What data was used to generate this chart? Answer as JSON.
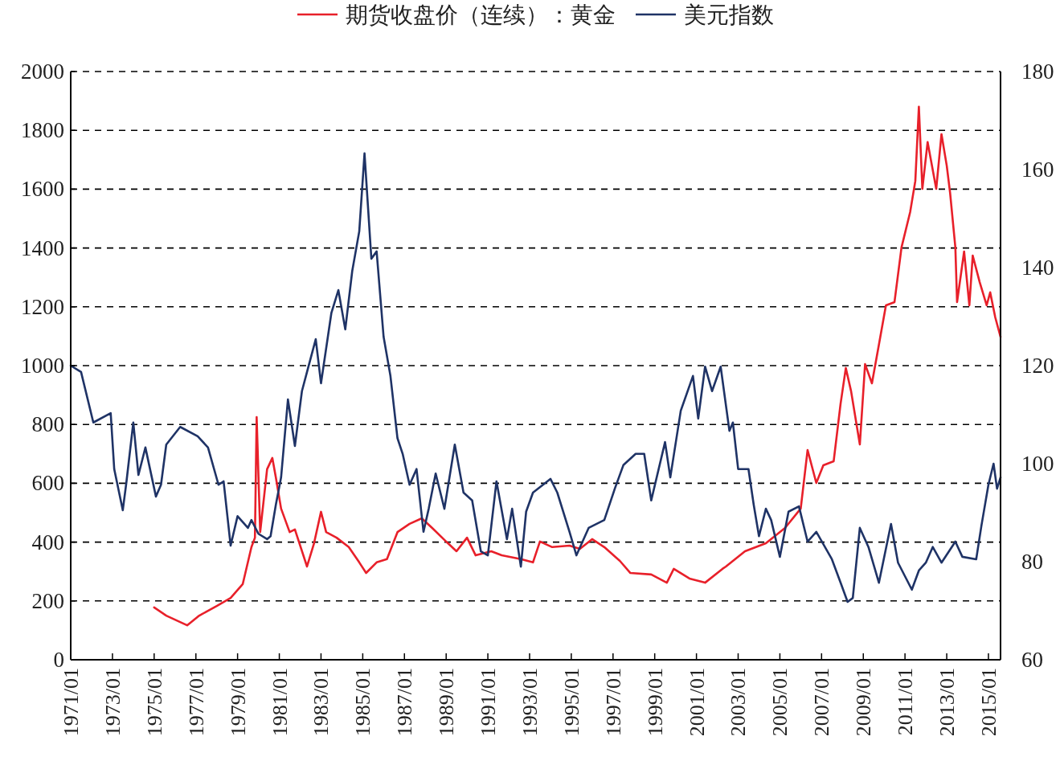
{
  "chart_data": {
    "type": "line",
    "legend": "top",
    "grid": "y",
    "xlim": [
      "1971-01",
      "2015-08"
    ],
    "xticks": [
      {
        "value": "1971-01",
        "label": "1971/01"
      },
      {
        "value": "1973-01",
        "label": "1973/01"
      },
      {
        "value": "1975-01",
        "label": "1975/01"
      },
      {
        "value": "1977-01",
        "label": "1977/01"
      },
      {
        "value": "1979-01",
        "label": "1979/01"
      },
      {
        "value": "1981-01",
        "label": "1981/01"
      },
      {
        "value": "1983-01",
        "label": "1983/01"
      },
      {
        "value": "1985-01",
        "label": "1985/01"
      },
      {
        "value": "1987-01",
        "label": "1987/01"
      },
      {
        "value": "1989-01",
        "label": "1989/01"
      },
      {
        "value": "1991-01",
        "label": "1991/01"
      },
      {
        "value": "1993-01",
        "label": "1993/01"
      },
      {
        "value": "1995-01",
        "label": "1995/01"
      },
      {
        "value": "1997-01",
        "label": "1997/01"
      },
      {
        "value": "1999-01",
        "label": "1999/01"
      },
      {
        "value": "2001-01",
        "label": "2001/01"
      },
      {
        "value": "2003-01",
        "label": "2003/01"
      },
      {
        "value": "2005-01",
        "label": "2005/01"
      },
      {
        "value": "2007-01",
        "label": "2007/01"
      },
      {
        "value": "2009-01",
        "label": "2009/01"
      },
      {
        "value": "2011-01",
        "label": "2011/01"
      },
      {
        "value": "2013-01",
        "label": "2013/01"
      },
      {
        "value": "2015-01",
        "label": "2015/01"
      }
    ],
    "ylim": [
      0,
      2000
    ],
    "yticks": [
      0,
      200,
      400,
      600,
      800,
      1000,
      1200,
      1400,
      1600,
      1800,
      2000
    ],
    "y2lim": [
      60,
      180
    ],
    "y2ticks": [
      60,
      80,
      100,
      120,
      140,
      160,
      180
    ],
    "series": [
      {
        "name": "期货收盘价（连续）：黄金",
        "color": "#e8202a",
        "x": [
          "1975-01",
          "1975-08",
          "1976-08",
          "1977-03",
          "1978-01",
          "1978-09",
          "1979-04",
          "1979-09",
          "1979-11",
          "1979-12",
          "1980-02",
          "1980-06",
          "1980-09",
          "1980-11",
          "1981-02",
          "1981-07",
          "1981-10",
          "1982-05",
          "1982-09",
          "1983-01",
          "1983-04",
          "1983-10",
          "1984-05",
          "1984-11",
          "1985-03",
          "1985-09",
          "1986-03",
          "1986-09",
          "1987-04",
          "1987-11",
          "1988-05",
          "1989-02",
          "1989-07",
          "1990-01",
          "1990-06",
          "1991-03",
          "1991-09",
          "1992-08",
          "1993-03",
          "1993-07",
          "1994-02",
          "1994-12",
          "1995-06",
          "1996-01",
          "1996-08",
          "1997-05",
          "1997-11",
          "1998-11",
          "1999-08",
          "1999-12",
          "2000-09",
          "2001-06",
          "2002-04",
          "2002-06",
          "2003-05",
          "2004-05",
          "2005-04",
          "2006-01",
          "2006-05",
          "2006-10",
          "2007-02",
          "2007-08",
          "2007-12",
          "2008-03",
          "2008-06",
          "2008-11",
          "2009-02",
          "2009-06",
          "2009-10",
          "2010-02",
          "2010-07",
          "2010-11",
          "2011-04",
          "2011-07",
          "2011-09",
          "2011-11",
          "2012-02",
          "2012-07",
          "2012-10",
          "2013-01",
          "2013-03",
          "2013-06",
          "2013-07",
          "2013-11",
          "2014-02",
          "2014-04",
          "2014-08",
          "2014-12",
          "2015-02",
          "2015-05",
          "2015-08"
        ],
        "values": [
          178,
          150,
          117,
          150,
          183,
          210,
          257,
          383,
          415,
          825,
          434,
          648,
          686,
          620,
          514,
          434,
          443,
          317,
          396,
          503,
          434,
          415,
          383,
          331,
          295,
          331,
          342,
          434,
          462,
          481,
          448,
          396,
          369,
          415,
          355,
          369,
          355,
          342,
          331,
          402,
          383,
          388,
          377,
          410,
          383,
          336,
          295,
          290,
          262,
          309,
          276,
          262,
          309,
          317,
          369,
          396,
          448,
          514,
          713,
          601,
          661,
          675,
          872,
          992,
          913,
          732,
          1005,
          940,
          1071,
          1205,
          1216,
          1402,
          1522,
          1628,
          1880,
          1601,
          1760,
          1601,
          1787,
          1680,
          1587,
          1402,
          1216,
          1388,
          1205,
          1374,
          1284,
          1205,
          1249,
          1164,
          1098
        ]
      },
      {
        "name": "美元指数",
        "color": "#1f3366",
        "axis": "y2",
        "x": [
          "1971-01",
          "1971-07",
          "1972-02",
          "1972-12",
          "1973-02",
          "1973-07",
          "1973-09",
          "1974-01",
          "1974-04",
          "1974-08",
          "1975-02",
          "1975-05",
          "1975-08",
          "1976-04",
          "1977-02",
          "1977-08",
          "1978-02",
          "1978-05",
          "1978-09",
          "1979-01",
          "1979-07",
          "1979-09",
          "1980-01",
          "1980-06",
          "1980-08",
          "1980-11",
          "1981-02",
          "1981-06",
          "1981-10",
          "1982-02",
          "1982-05",
          "1982-10",
          "1983-01",
          "1983-07",
          "1983-11",
          "1984-03",
          "1984-07",
          "1984-11",
          "1985-02",
          "1985-06",
          "1985-09",
          "1986-01",
          "1986-05",
          "1986-09",
          "1986-12",
          "1987-04",
          "1987-08",
          "1987-12",
          "1988-03",
          "1988-07",
          "1988-12",
          "1989-06",
          "1989-11",
          "1990-04",
          "1990-09",
          "1991-01",
          "1991-06",
          "1991-12",
          "1992-03",
          "1992-08",
          "1992-11",
          "1993-03",
          "1994-01",
          "1994-05",
          "1994-12",
          "1995-04",
          "1995-11",
          "1996-08",
          "1997-02",
          "1997-07",
          "1998-02",
          "1998-07",
          "1998-11",
          "1999-07",
          "1999-10",
          "2000-04",
          "2000-11",
          "2001-02",
          "2001-06",
          "2001-10",
          "2002-03",
          "2002-08",
          "2002-10",
          "2003-01",
          "2003-07",
          "2003-10",
          "2004-01",
          "2004-05",
          "2004-08",
          "2005-01",
          "2005-06",
          "2005-12",
          "2006-05",
          "2006-10",
          "2007-07",
          "2007-12",
          "2008-04",
          "2008-07",
          "2008-11",
          "2009-04",
          "2009-10",
          "2010-05",
          "2010-09",
          "2011-05",
          "2011-09",
          "2012-01",
          "2012-05",
          "2012-10",
          "2013-06",
          "2013-10",
          "2014-06",
          "2014-09",
          "2015-01",
          "2015-04",
          "2015-06",
          "2015-08"
        ],
        "values": [
          120,
          118.7,
          108.4,
          110.3,
          98.9,
          90.5,
          96.1,
          108.4,
          97.7,
          103.3,
          93.3,
          95.7,
          103.9,
          107.5,
          105.6,
          103.3,
          95.7,
          96.4,
          83.3,
          89.3,
          86.9,
          88.5,
          85.7,
          84.6,
          85.2,
          91.6,
          97.2,
          113.1,
          103.6,
          114.8,
          118.7,
          125.4,
          116.4,
          130.7,
          135.4,
          127.4,
          139.3,
          147.4,
          163.3,
          141.8,
          143.3,
          125.9,
          117.9,
          105.2,
          102,
          95.7,
          98.9,
          86.1,
          90.8,
          98,
          90.8,
          103.9,
          94.1,
          92.5,
          82.1,
          81.3,
          96.4,
          84.6,
          90.8,
          79,
          90.2,
          94.1,
          96.9,
          94.1,
          86.1,
          81.3,
          86.9,
          88.5,
          94.9,
          99.7,
          102,
          102,
          92.5,
          104.4,
          97.2,
          110.8,
          117.9,
          109.2,
          119.8,
          114.8,
          119.8,
          106.7,
          108.4,
          98.9,
          98.9,
          91.6,
          85.2,
          90.8,
          88.5,
          81,
          90.2,
          91.3,
          84.1,
          86.1,
          80.5,
          75.7,
          71.8,
          72.6,
          86.9,
          83,
          75.7,
          87.7,
          79.8,
          74.3,
          78.2,
          79.8,
          83,
          79.8,
          84.1,
          81,
          80.5,
          87.4,
          95.7,
          100,
          94.9,
          97.2
        ]
      }
    ]
  }
}
